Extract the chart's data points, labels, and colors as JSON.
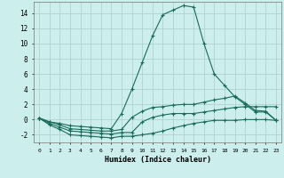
{
  "title": "",
  "xlabel": "Humidex (Indice chaleur)",
  "background_color": "#cceeed",
  "grid_color": "#aacccc",
  "line_color": "#1a6b5a",
  "xlim": [
    -0.5,
    23.5
  ],
  "ylim": [
    -3.0,
    15.5
  ],
  "xtick_labels": [
    "0",
    "1",
    "2",
    "3",
    "4",
    "5",
    "6",
    "7",
    "8",
    "9",
    "10",
    "11",
    "12",
    "13",
    "14",
    "15",
    "16",
    "17",
    "18",
    "19",
    "20",
    "21",
    "22",
    "23"
  ],
  "ytick_values": [
    -2,
    0,
    2,
    4,
    6,
    8,
    10,
    12,
    14
  ],
  "series": [
    [
      0.2,
      -0.7,
      -1.3,
      -2.0,
      -2.1,
      -2.2,
      -2.3,
      -2.4,
      -2.2,
      -2.2,
      -2.0,
      -1.8,
      -1.5,
      -1.1,
      -0.8,
      -0.5,
      -0.3,
      -0.1,
      -0.1,
      -0.1,
      0.0,
      0.0,
      0.0,
      -0.1
    ],
    [
      0.2,
      -0.5,
      -1.0,
      -1.5,
      -1.6,
      -1.7,
      -1.8,
      -1.9,
      -1.7,
      -1.7,
      -0.3,
      0.3,
      0.6,
      0.8,
      0.8,
      0.8,
      1.0,
      1.2,
      1.4,
      1.6,
      1.7,
      1.7,
      1.7,
      1.7
    ],
    [
      0.2,
      -0.3,
      -0.7,
      -1.2,
      -1.3,
      -1.4,
      -1.5,
      -1.5,
      -1.3,
      0.3,
      1.1,
      1.6,
      1.7,
      1.9,
      2.0,
      2.0,
      2.3,
      2.6,
      2.8,
      3.1,
      2.2,
      1.2,
      1.1,
      -0.1
    ],
    [
      0.2,
      -0.3,
      -0.5,
      -0.8,
      -0.9,
      -1.0,
      -1.1,
      -1.2,
      0.8,
      4.0,
      7.5,
      11.0,
      13.8,
      14.4,
      15.0,
      14.8,
      10.0,
      6.0,
      4.5,
      3.0,
      2.0,
      1.0,
      1.0,
      -0.1
    ]
  ]
}
